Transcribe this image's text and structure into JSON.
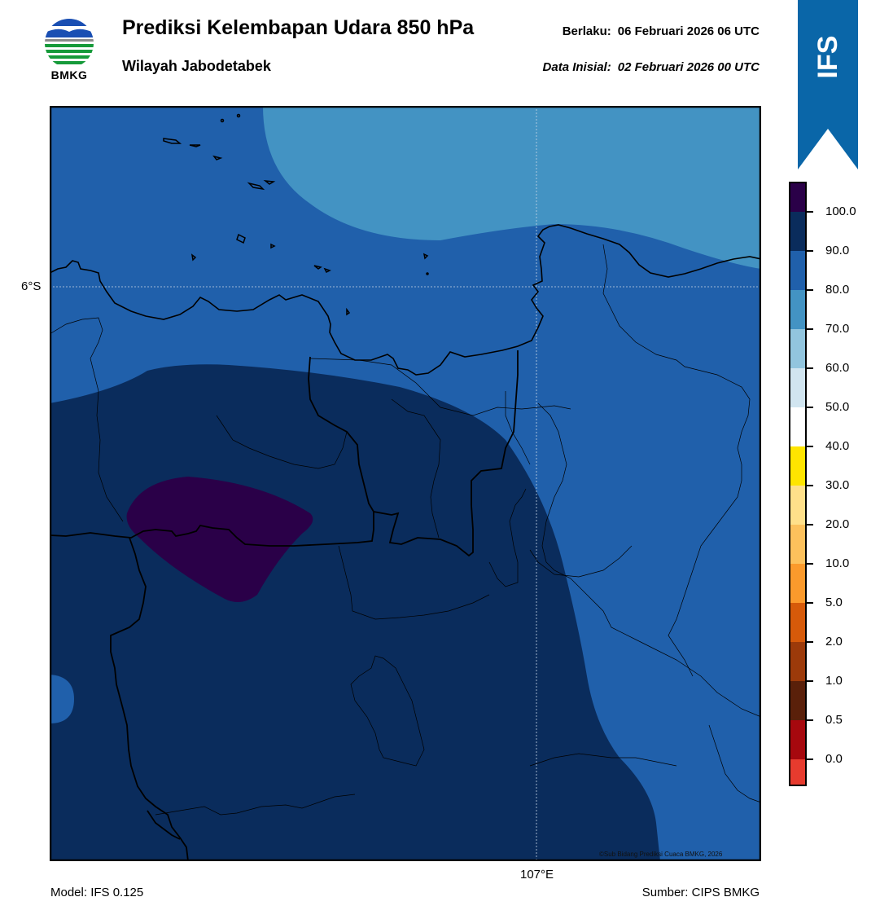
{
  "header": {
    "logo_text": "BMKG",
    "title": "Prediksi Kelembapan Udara 850 hPa",
    "subtitle": "Wilayah Jabodetabek",
    "valid_label": "Berlaku:",
    "valid_value": "06 Februari 2026 06 UTC",
    "init_label": "Data Inisial:",
    "init_value": "02 Februari 2026 00 UTC"
  },
  "badge": {
    "text": "IFS",
    "color": "#0a66a8"
  },
  "map": {
    "lat_label": "6°S",
    "lon_label": "107°E",
    "copyright": "©Sub Bidang Prediksi Cuaca BMKG, 2026"
  },
  "footer": {
    "model": "Model: IFS 0.125",
    "source": "Sumber: CIPS BMKG"
  },
  "colorbar": {
    "ticks": [
      "100.0",
      "90.0",
      "80.0",
      "70.0",
      "60.0",
      "50.0",
      "40.0",
      "30.0",
      "20.0",
      "10.0",
      "5.0",
      "2.0",
      "1.0",
      "0.5",
      "0.0"
    ],
    "colors": [
      "#2a0048",
      "#0a2c5c",
      "#2060ab",
      "#4393c3",
      "#92c5de",
      "#d1e5f0",
      "#ffffff",
      "#ffe500",
      "#ffe08a",
      "#fcc15c",
      "#fb9a2c",
      "#d65a0a",
      "#9c3a0a",
      "#5a200a",
      "#a6080e",
      "#e63b2e"
    ]
  }
}
